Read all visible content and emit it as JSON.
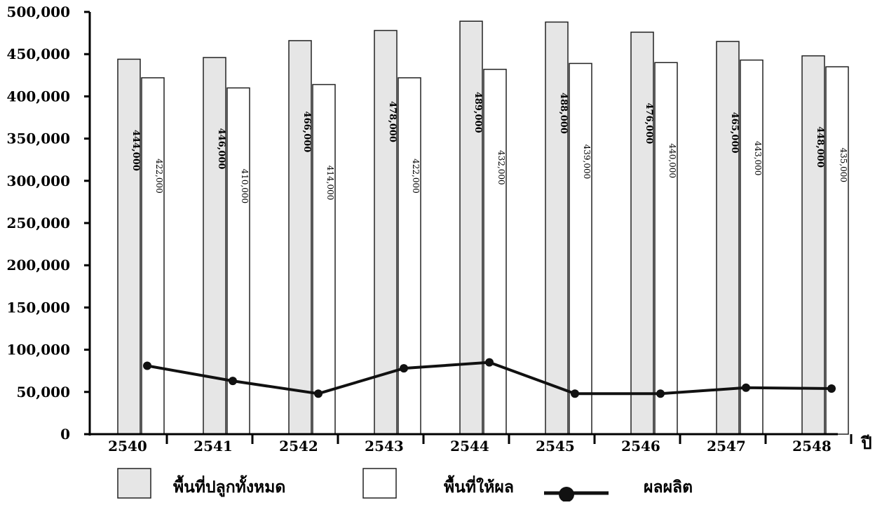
{
  "chart_data": {
    "type": "bar",
    "title": "",
    "xlabel": "ปี",
    "ylabel": "",
    "ylim": [
      0,
      500000
    ],
    "yticks": [
      0,
      50000,
      100000,
      150000,
      200000,
      250000,
      300000,
      350000,
      400000,
      450000,
      500000
    ],
    "ytick_labels": [
      "0",
      "50,000",
      "100,000",
      "150,000",
      "200,000",
      "250,000",
      "300,000",
      "350,000",
      "400,000",
      "450,000",
      "500,000"
    ],
    "categories": [
      "2540",
      "2541",
      "2542",
      "2543",
      "2544",
      "2545",
      "2546",
      "2547",
      "2548"
    ],
    "series": [
      {
        "name": "พื้นที่ปลูกทั้งหมด",
        "type": "bar",
        "values": [
          444000,
          446000,
          466000,
          478000,
          489000,
          488000,
          476000,
          465000,
          448000
        ],
        "data_labels": [
          "444,000",
          "446,000",
          "466,000",
          "478,000",
          "489,000",
          "488,000",
          "476,000",
          "465,000",
          "448,000"
        ],
        "color": "#e6e6e6"
      },
      {
        "name": "พื้นที่ให้ผล",
        "type": "bar",
        "values": [
          422000,
          410000,
          414000,
          422000,
          432000,
          439000,
          440000,
          443000,
          435000
        ],
        "data_labels": [
          "422,000",
          "410,000",
          "414,000",
          "422,000",
          "432,000",
          "439,000",
          "440,000",
          "443,000",
          "435,000"
        ],
        "color": "#ffffff"
      },
      {
        "name": "ผลผลิต",
        "type": "line",
        "values": [
          81000,
          63000,
          48000,
          78000,
          85000,
          48000,
          48000,
          55000,
          54000
        ],
        "color": "#111111"
      }
    ],
    "grid": false,
    "legend_position": "bottom"
  }
}
